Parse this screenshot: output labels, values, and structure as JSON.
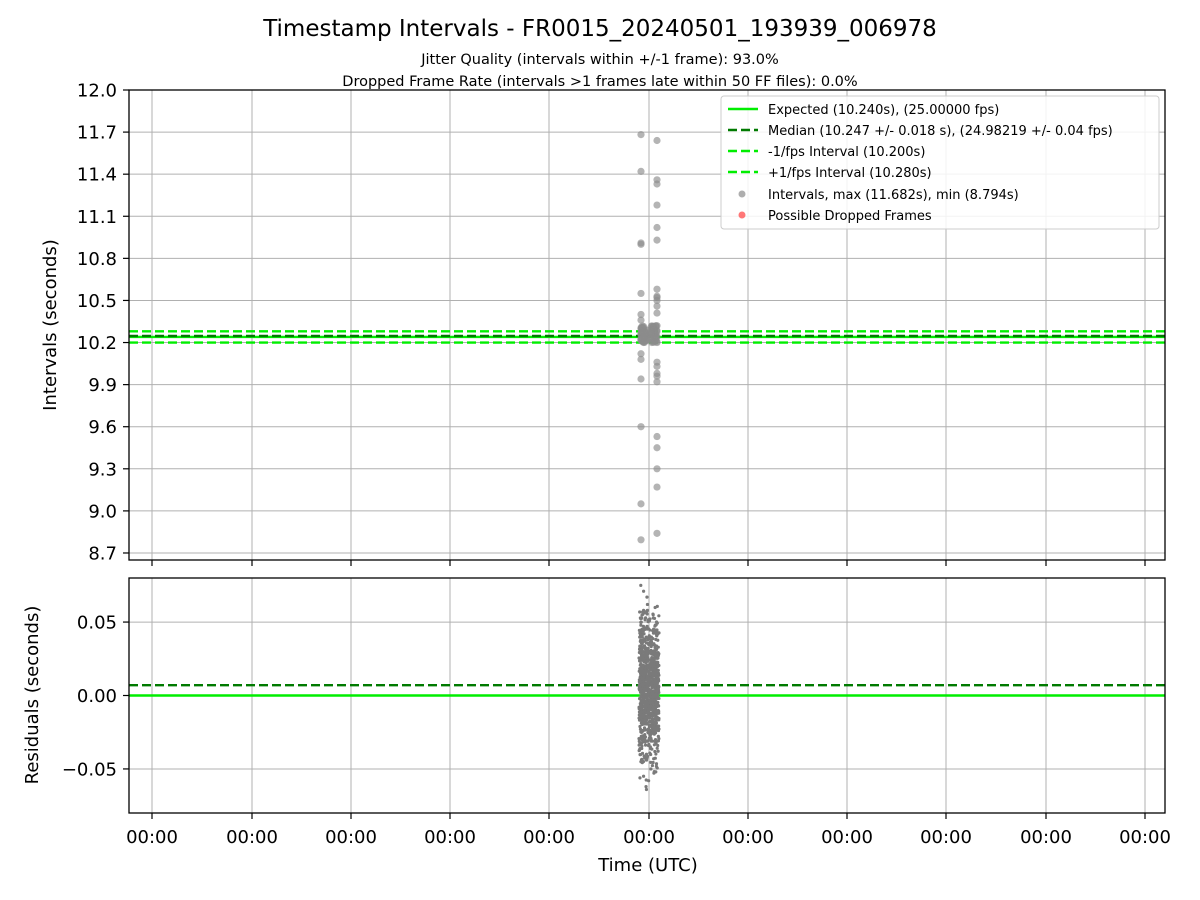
{
  "chart_data": [
    {
      "panel": "intervals",
      "type": "scatter",
      "title": "Timestamp Intervals - FR0015_20240501_193939_006978",
      "subtitle_lines": [
        "Jitter Quality (intervals within +/-1 frame): 93.0%",
        "Dropped Frame Rate (intervals >1 frames late within 50 FF files): 0.0%"
      ],
      "xlabel": "",
      "ylabel": "Intervals (seconds)",
      "ylim": [
        8.65,
        12.0
      ],
      "yticks": [
        "12.0",
        "11.7",
        "11.4",
        "11.1",
        "10.8",
        "10.5",
        "10.2",
        "9.9",
        "9.6",
        "9.3",
        "9.0",
        "8.7"
      ],
      "grid": true,
      "legend_position": "top-right",
      "reference_lines": [
        {
          "name": "Expected (10.240s), (25.00000 fps)",
          "value": 10.24,
          "style": "solid",
          "color": "#00ee00"
        },
        {
          "name": "Median (10.247 +/- 0.018 s), (24.98219 +/- 0.04 fps)",
          "value": 10.247,
          "style": "dashed",
          "color": "#007a00"
        },
        {
          "name": "-1/fps Interval (10.200s)",
          "value": 10.2,
          "style": "dashed",
          "color": "#00ee00"
        },
        {
          "name": "+1/fps Interval (10.280s)",
          "value": 10.28,
          "style": "dashed",
          "color": "#00ee00"
        }
      ],
      "series": [
        {
          "name": "Intervals, max (11.682s), min (8.794s)",
          "color": "#8c8c8c",
          "x_slot": [
            -0.1,
            0.1,
            -0.1,
            0.1,
            0.1,
            0.1,
            0.1,
            -0.1,
            -0.1,
            0.1,
            0.1,
            -0.1,
            0.1,
            0.1,
            0.1,
            0.1,
            -0.1,
            0.1,
            -0.1,
            0.1,
            -0.1,
            0.1,
            -0.1,
            0.1,
            -0.1,
            0.1,
            -0.1,
            0.1,
            0.1,
            -0.1,
            0.1,
            0.1,
            0.1,
            0.1,
            0.1,
            0.1,
            0.1,
            -0.1,
            0.1
          ],
          "values": [
            11.682,
            11.64,
            11.42,
            11.36,
            11.33,
            11.18,
            11.02,
            10.91,
            10.9,
            10.93,
            10.58,
            10.55,
            10.53,
            10.52,
            10.5,
            10.46,
            10.4,
            10.41,
            10.36,
            10.32,
            10.3,
            10.28,
            10.26,
            10.24,
            10.22,
            10.2,
            10.12,
            10.06,
            10.03,
            9.94,
            9.98,
            9.96,
            9.92,
            9.53,
            9.45,
            9.3,
            9.17,
            9.05,
            8.84
          ]
        },
        {
          "name": "Possible Dropped Frames",
          "color": "#ff5555",
          "values": []
        }
      ],
      "extra_points": [
        {
          "x_slot": -0.1,
          "value": 8.794
        },
        {
          "x_slot": -0.1,
          "value": 9.6
        },
        {
          "x_slot": -0.1,
          "value": 10.08
        }
      ]
    },
    {
      "panel": "residuals",
      "type": "scatter",
      "xlabel": "Time (UTC)",
      "ylabel": "Residuals (seconds)",
      "ylim": [
        -0.08,
        0.08
      ],
      "yticks": [
        "0.05",
        "0.00",
        "−0.05"
      ],
      "ytick_values": [
        0.05,
        0.0,
        -0.05
      ],
      "grid": true,
      "reference_lines": [
        {
          "value": 0.0,
          "style": "solid",
          "color": "#00ee00"
        },
        {
          "value": 0.007,
          "style": "dashed",
          "color": "#007a00"
        }
      ],
      "series": [
        {
          "name": "Residuals",
          "color": "#7a7a7a",
          "note_range": [
            -0.064,
            0.075
          ],
          "values_sample": [
            0.075,
            0.071,
            0.067,
            0.062,
            0.058,
            0.055,
            0.05,
            0.045,
            0.04,
            0.035,
            0.03,
            0.025,
            0.02,
            0.015,
            0.01,
            0.005,
            0.0,
            -0.005,
            -0.01,
            -0.015,
            -0.02,
            -0.025,
            -0.03,
            -0.035,
            -0.04,
            -0.045,
            -0.05,
            -0.055,
            -0.058,
            -0.062,
            -0.064
          ]
        }
      ]
    }
  ],
  "xaxis": {
    "label": "Time (UTC)",
    "tick_labels": [
      "00:00",
      "00:00",
      "00:00",
      "00:00",
      "00:00",
      "00:00",
      "00:00",
      "00:00",
      "00:00",
      "00:00",
      "00:00"
    ]
  }
}
